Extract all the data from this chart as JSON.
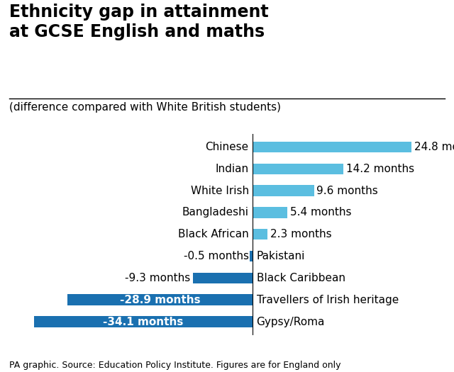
{
  "title": "Ethnicity gap in attainment\nat GCSE English and maths",
  "subtitle": "(difference compared with White British students)",
  "footer": "PA graphic. Source: Education Policy Institute. Figures are for England only",
  "categories": [
    "Gypsy/Roma",
    "Travellers of Irish heritage",
    "Black Caribbean",
    "Pakistani",
    "Black African",
    "Bangladeshi",
    "White Irish",
    "Indian",
    "Chinese"
  ],
  "values": [
    -34.1,
    -28.9,
    -9.3,
    -0.5,
    2.3,
    5.4,
    9.6,
    14.2,
    24.8
  ],
  "bar_color_positive": "#5bbee0",
  "bar_color_negative": "#1a70b0",
  "title_fontsize": 17,
  "subtitle_fontsize": 11,
  "label_fontsize": 11,
  "footer_fontsize": 9,
  "background_color": "#ffffff",
  "xlim": [
    -38,
    30
  ]
}
